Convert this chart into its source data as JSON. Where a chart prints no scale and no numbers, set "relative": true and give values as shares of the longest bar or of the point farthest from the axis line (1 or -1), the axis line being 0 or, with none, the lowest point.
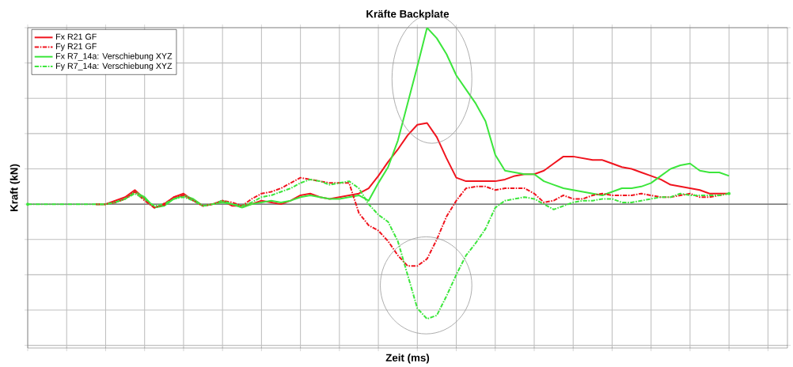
{
  "chart_data": {
    "type": "line",
    "title": "Kräfte Backplate",
    "xlabel": "Zeit (ms)",
    "ylabel": "Kraft (kN)",
    "relative": true,
    "grid": true,
    "legend": "top left",
    "categories": [
      null,
      null,
      null,
      null,
      null,
      null,
      null,
      null,
      null,
      null,
      null,
      null,
      null,
      null,
      null,
      null,
      null,
      null,
      null,
      null,
      null,
      null,
      null,
      null,
      null,
      null,
      null,
      null,
      null,
      null,
      null,
      null,
      null,
      null,
      null,
      null,
      null,
      null,
      null,
      null,
      null,
      null,
      null,
      null,
      null,
      null,
      null,
      null,
      null,
      null,
      null,
      null,
      null,
      null,
      null,
      null,
      null,
      null,
      null,
      null,
      null,
      null,
      null,
      null,
      null,
      null,
      null,
      null,
      null,
      null,
      null,
      null,
      null,
      null,
      null,
      null,
      null,
      null,
      null
    ],
    "series": [
      {
        "name": "Fx R21 GF",
        "color": "#f0141e",
        "line_style": "solid",
        "values": [
          null,
          null,
          null,
          null,
          null,
          null,
          null,
          0,
          0,
          0.02,
          0.04,
          0.08,
          0.03,
          -0.02,
          0,
          0.04,
          0.06,
          0.02,
          -0.01,
          0,
          0.02,
          -0.01,
          -0.01,
          0,
          0.02,
          0.01,
          0,
          0.02,
          0.05,
          0.06,
          0.04,
          0.03,
          0.04,
          0.05,
          0.06,
          0.09,
          0.16,
          0.24,
          0.31,
          0.39,
          0.45,
          0.46,
          0.38,
          0.26,
          0.15,
          0.13,
          0.13,
          0.13,
          0.13,
          0.14,
          0.16,
          0.17,
          0.17,
          0.19,
          0.23,
          0.27,
          0.27,
          0.26,
          0.25,
          0.25,
          0.23,
          0.21,
          0.2,
          0.18,
          0.16,
          0.14,
          0.11,
          0.1,
          0.09,
          0.08,
          0.06,
          0.06,
          0.06,
          null,
          null,
          null,
          null,
          null,
          null
        ]
      },
      {
        "name": "Fy R21 GF",
        "color": "#f0141e",
        "line_style": "dashed",
        "values": [
          null,
          null,
          null,
          null,
          null,
          null,
          null,
          0,
          0,
          0.01,
          0.03,
          0.07,
          0.02,
          -0.02,
          0,
          0.04,
          0.05,
          0.02,
          -0.01,
          0,
          0.02,
          0.01,
          -0.01,
          0.03,
          0.06,
          0.07,
          0.09,
          0.12,
          0.15,
          0.14,
          0.13,
          0.12,
          0.12,
          0.12,
          -0.05,
          -0.12,
          -0.15,
          -0.21,
          -0.29,
          -0.35,
          -0.35,
          -0.31,
          -0.2,
          -0.07,
          0.02,
          0.09,
          0.1,
          0.1,
          0.08,
          0.09,
          0.09,
          0.09,
          0.06,
          0.01,
          0.02,
          0.05,
          0.03,
          0.03,
          0.05,
          0.06,
          0.05,
          0.05,
          0.05,
          0.06,
          0.05,
          0.04,
          0.04,
          0.05,
          0.06,
          0.04,
          0.04,
          0.05,
          0.06,
          null,
          null,
          null,
          null,
          null,
          null
        ]
      },
      {
        "name": "Fx R7_14a: Verschiebung XYZ",
        "color": "#3ce63c",
        "line_style": "solid",
        "values": [
          null,
          null,
          null,
          null,
          null,
          null,
          null,
          0,
          0,
          0.01,
          0.03,
          0.07,
          0.04,
          -0.02,
          -0.01,
          0.03,
          0.05,
          0.03,
          -0.01,
          0,
          0.01,
          0,
          -0.02,
          0,
          0.01,
          0.02,
          0.01,
          0.02,
          0.04,
          0.05,
          0.04,
          0.03,
          0.03,
          0.04,
          0.05,
          0.02,
          0.12,
          0.21,
          0.36,
          0.57,
          0.78,
          1,
          0.94,
          0.85,
          0.73,
          0.65,
          0.57,
          0.47,
          0.28,
          0.19,
          0.18,
          0.17,
          0.17,
          0.13,
          0.11,
          0.09,
          0.08,
          0.07,
          0.06,
          0.05,
          0.07,
          0.09,
          0.09,
          0.1,
          0.12,
          0.16,
          0.2,
          0.22,
          0.23,
          0.19,
          0.18,
          0.18,
          0.16,
          null,
          null,
          null,
          null,
          null,
          null
        ]
      },
      {
        "name": "Fy R7_14a: Verschiebung XYZ",
        "color": "#3ce63c",
        "line_style": "dashed",
        "values": [
          0,
          0,
          0,
          0,
          0,
          0,
          0,
          0,
          0,
          0.01,
          0.03,
          0.06,
          0.03,
          -0.01,
          0,
          0.03,
          0.04,
          0.02,
          -0.01,
          0,
          0.02,
          0,
          -0.01,
          0.01,
          0.04,
          0.05,
          0.07,
          0.09,
          0.12,
          0.14,
          0.13,
          0.11,
          0.12,
          0.13,
          0.09,
          0,
          -0.06,
          -0.1,
          -0.21,
          -0.4,
          -0.59,
          -0.65,
          -0.63,
          -0.52,
          -0.4,
          -0.29,
          -0.22,
          -0.14,
          -0.02,
          0.02,
          0.03,
          0.04,
          0.03,
          0,
          -0.03,
          -0.01,
          0.01,
          0.02,
          0.02,
          0.03,
          0.03,
          0.01,
          0.01,
          0.02,
          0.03,
          0.04,
          0.04,
          0.06,
          0.05,
          0.05,
          0.05,
          0.05,
          0.06,
          null,
          null,
          null,
          null,
          null,
          null
        ]
      }
    ]
  }
}
